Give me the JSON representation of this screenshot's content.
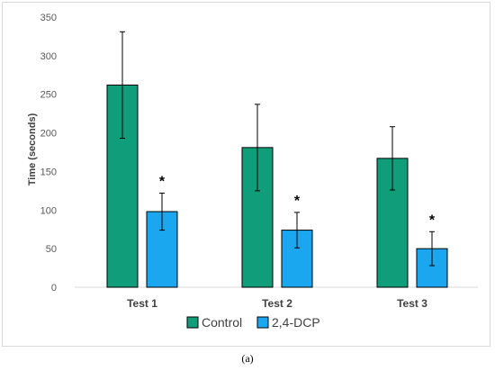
{
  "chart_data": {
    "type": "bar",
    "categories": [
      "Test 1",
      "Test 2",
      "Test 3"
    ],
    "series": [
      {
        "name": "Control",
        "color": "#0f9d7a",
        "values": [
          262,
          181,
          167
        ],
        "errors": [
          69,
          56,
          41
        ],
        "significance": [
          "",
          "",
          ""
        ]
      },
      {
        "name": "2,4-DCP",
        "color": "#1aa7f0",
        "values": [
          98,
          74,
          50
        ],
        "errors": [
          24,
          23,
          22
        ],
        "significance": [
          "*",
          "*",
          "*"
        ]
      }
    ],
    "ylabel": "Time (seconds)",
    "xlabel": "",
    "ylim": [
      0,
      350
    ],
    "yticks": [
      0,
      50,
      100,
      150,
      200,
      250,
      300,
      350
    ],
    "grid": false,
    "legend_position": "bottom"
  },
  "caption": "(a)"
}
